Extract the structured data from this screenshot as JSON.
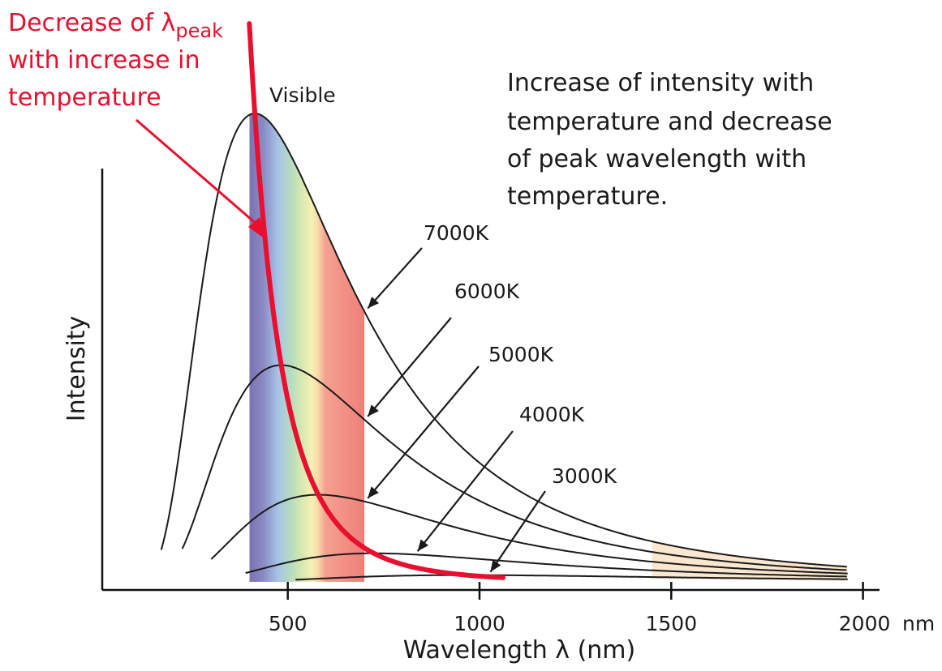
{
  "chart_data": {
    "type": "line",
    "xlabel": "Wavelength λ (nm)",
    "ylabel": "Intensity",
    "x_unit": "nm",
    "xlim": [
      100,
      2000
    ],
    "x_ticks": [
      500,
      1000,
      1500,
      2000
    ],
    "visible_band_label": "Visible",
    "visible_band_nm": [
      400,
      700
    ],
    "series": [
      {
        "name": "7000K",
        "temperature": 7000
      },
      {
        "name": "6000K",
        "temperature": 6000
      },
      {
        "name": "5000K",
        "temperature": 5000
      },
      {
        "name": "4000K",
        "temperature": 4000
      },
      {
        "name": "3000K",
        "temperature": 3000
      }
    ],
    "peak_annotation": {
      "line1": "Decrease of λ",
      "subscript": "peak",
      "line2": "with increase in",
      "line3": "temperature",
      "color": "#e8102e"
    },
    "note": {
      "lines": [
        "Increase of intensity with",
        "temperature and decrease",
        "of peak wavelength with",
        "temperature."
      ]
    }
  }
}
